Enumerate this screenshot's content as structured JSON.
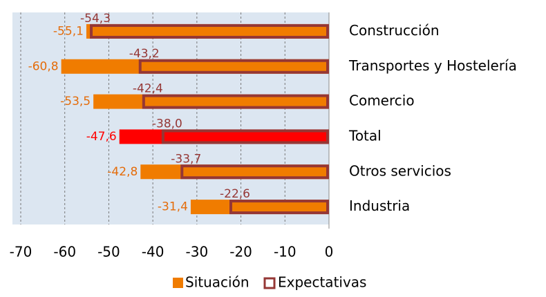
{
  "chart_data": {
    "type": "barh",
    "categories": [
      "Construcción",
      "Transportes y Hostelería",
      "Comercio",
      "Total",
      "Otros servicios",
      "Industria"
    ],
    "series": [
      {
        "name": "Situación",
        "color": "#f07c00",
        "colors": [
          "#f07c00",
          "#f07c00",
          "#f07c00",
          "#ff0000",
          "#f07c00",
          "#f07c00"
        ],
        "values": [
          -55.1,
          -60.8,
          -53.5,
          -47.6,
          -42.8,
          -31.4
        ],
        "value_labels": [
          "-55,1",
          "-60,8",
          "-53,5",
          "-47,6",
          "-42,8",
          "-31,4"
        ]
      },
      {
        "name": "Expectativas",
        "color": "#f07c00",
        "edgecolor": "#953735",
        "colors": [
          "#f07c00",
          "#f07c00",
          "#f07c00",
          "#ff0000",
          "#f07c00",
          "#f07c00"
        ],
        "values": [
          -54.3,
          -43.2,
          -42.4,
          -38.0,
          -33.7,
          -22.6
        ],
        "value_labels": [
          "-54,3",
          "-43,2",
          "-42,4",
          "-38,0",
          "-33,7",
          "-22,6"
        ]
      }
    ],
    "xlim": [
      -70,
      0
    ],
    "xticks": [
      -70,
      -60,
      -50,
      -40,
      -30,
      -20,
      -10,
      0
    ],
    "grid": true,
    "legend": "bottom"
  }
}
